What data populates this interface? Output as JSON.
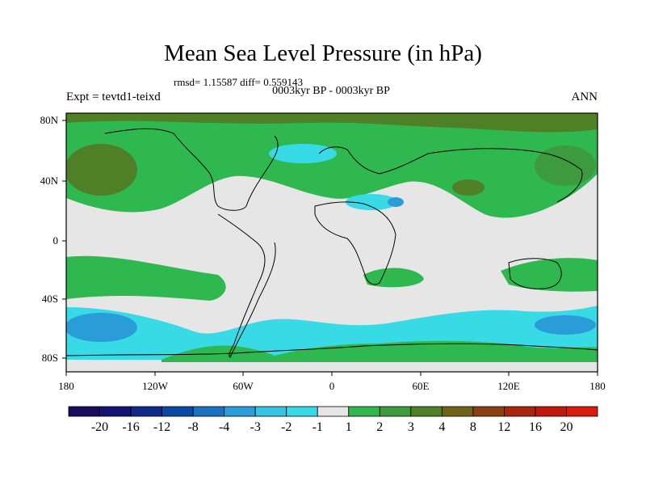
{
  "title": "Mean Sea Level Pressure (in hPa)",
  "stats": "rmsd= 1.15587 diff= 0.559143",
  "subtitle": "0003kyr BP - 0003kyr BP",
  "left_label": "Expt = tevtd1-teixd",
  "right_label": "ANN",
  "lat_ticks": [
    "80N",
    "40N",
    "0",
    "40S",
    "80S"
  ],
  "lon_ticks": [
    "180",
    "120W",
    "60W",
    "0",
    "60E",
    "120E",
    "180"
  ],
  "colorbar": {
    "labels": [
      "-20",
      "-16",
      "-12",
      "-8",
      "-4",
      "-3",
      "-2",
      "-1",
      "1",
      "2",
      "3",
      "4",
      "8",
      "12",
      "16",
      "20"
    ],
    "colors": [
      "#1a0b5e",
      "#141475",
      "#0f2a8a",
      "#0a4aa6",
      "#1a73c2",
      "#2a9cd8",
      "#35c3e6",
      "#38dae6",
      "#e6e6e6",
      "#2fb84f",
      "#3e9a3e",
      "#4f7f26",
      "#6e6316",
      "#8c3f12",
      "#a8260f",
      "#c0180d",
      "#d81b0e"
    ]
  },
  "chart_data": {
    "type": "heatmap",
    "variable": "Mean Sea Level Pressure difference",
    "units": "hPa",
    "x_range": [
      -180,
      180
    ],
    "y_range": [
      -90,
      90
    ],
    "levels": [
      -20,
      -16,
      -12,
      -8,
      -4,
      -3,
      -2,
      -1,
      1,
      2,
      3,
      4,
      8,
      12,
      16,
      20
    ]
  }
}
